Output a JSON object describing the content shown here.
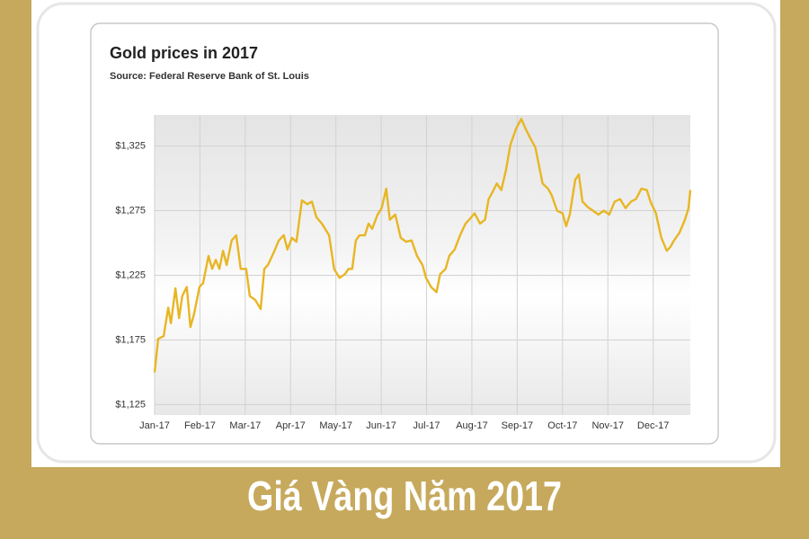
{
  "chart_data": {
    "type": "line",
    "title": "Gold prices in 2017",
    "subtitle": "Source: Federal Reserve Bank of St. Louis",
    "color": "#e8b624",
    "grid": true,
    "xlim": [
      0,
      11.82
    ],
    "ylim": [
      1117,
      1349
    ],
    "xticks": [
      {
        "value": 0,
        "label": "Jan-17"
      },
      {
        "value": 1,
        "label": "Feb-17"
      },
      {
        "value": 2,
        "label": "Mar-17"
      },
      {
        "value": 3,
        "label": "Apr-17"
      },
      {
        "value": 4,
        "label": "May-17"
      },
      {
        "value": 5,
        "label": "Jun-17"
      },
      {
        "value": 6,
        "label": "Jul-17"
      },
      {
        "value": 7,
        "label": "Aug-17"
      },
      {
        "value": 8,
        "label": "Sep-17"
      },
      {
        "value": 9,
        "label": "Oct-17"
      },
      {
        "value": 10,
        "label": "Nov-17"
      },
      {
        "value": 11,
        "label": "Dec-17"
      }
    ],
    "yticks": [
      {
        "value": 1125,
        "label": "$1,125"
      },
      {
        "value": 1175,
        "label": "$1,175"
      },
      {
        "value": 1225,
        "label": "$1,225"
      },
      {
        "value": 1275,
        "label": "$1,275"
      },
      {
        "value": 1325,
        "label": "$1,325"
      }
    ],
    "x": [
      0.0,
      0.08,
      0.2,
      0.3,
      0.36,
      0.46,
      0.54,
      0.61,
      0.71,
      0.79,
      0.87,
      0.99,
      1.07,
      1.19,
      1.27,
      1.35,
      1.43,
      1.51,
      1.59,
      1.7,
      1.8,
      1.9,
      2.02,
      2.1,
      2.22,
      2.34,
      2.42,
      2.5,
      2.62,
      2.74,
      2.85,
      2.93,
      3.03,
      3.13,
      3.25,
      3.37,
      3.47,
      3.57,
      3.69,
      3.85,
      3.96,
      4.08,
      4.2,
      4.28,
      4.36,
      4.44,
      4.52,
      4.64,
      4.72,
      4.8,
      4.92,
      5.01,
      5.11,
      5.19,
      5.31,
      5.43,
      5.55,
      5.67,
      5.79,
      5.91,
      5.99,
      6.1,
      6.22,
      6.3,
      6.42,
      6.5,
      6.62,
      6.74,
      6.86,
      6.94,
      7.06,
      7.18,
      7.29,
      7.37,
      7.45,
      7.55,
      7.65,
      7.75,
      7.85,
      7.97,
      8.09,
      8.19,
      8.29,
      8.4,
      8.48,
      8.56,
      8.68,
      8.76,
      8.88,
      9.0,
      9.08,
      9.16,
      9.28,
      9.36,
      9.44,
      9.55,
      9.67,
      9.79,
      9.91,
      10.03,
      10.15,
      10.27,
      10.39,
      10.51,
      10.62,
      10.74,
      10.86,
      10.94,
      11.06,
      11.18,
      11.3,
      11.38,
      11.46,
      11.58,
      11.7,
      11.78,
      11.82
    ],
    "values": [
      1150,
      1176,
      1178,
      1200,
      1188,
      1215,
      1192,
      1209,
      1216,
      1185,
      1195,
      1216,
      1219,
      1240,
      1230,
      1237,
      1230,
      1244,
      1233,
      1252,
      1256,
      1230,
      1230,
      1209,
      1206,
      1199,
      1230,
      1233,
      1242,
      1252,
      1256,
      1245,
      1254,
      1251,
      1283,
      1280,
      1282,
      1270,
      1265,
      1256,
      1230,
      1223,
      1226,
      1230,
      1230,
      1252,
      1256,
      1256,
      1265,
      1261,
      1272,
      1277,
      1292,
      1268,
      1272,
      1254,
      1251,
      1252,
      1240,
      1233,
      1223,
      1216,
      1212,
      1226,
      1230,
      1240,
      1245,
      1256,
      1265,
      1268,
      1273,
      1265,
      1268,
      1284,
      1289,
      1296,
      1291,
      1306,
      1326,
      1338,
      1346,
      1338,
      1331,
      1324,
      1310,
      1296,
      1292,
      1287,
      1275,
      1273,
      1263,
      1272,
      1299,
      1303,
      1282,
      1278,
      1275,
      1272,
      1275,
      1272,
      1282,
      1284,
      1277,
      1282,
      1284,
      1292,
      1291,
      1282,
      1273,
      1254,
      1244,
      1247,
      1252,
      1258,
      1268,
      1277,
      1291
    ]
  },
  "banner": {
    "title": "Giá Vàng Năm 2017"
  }
}
